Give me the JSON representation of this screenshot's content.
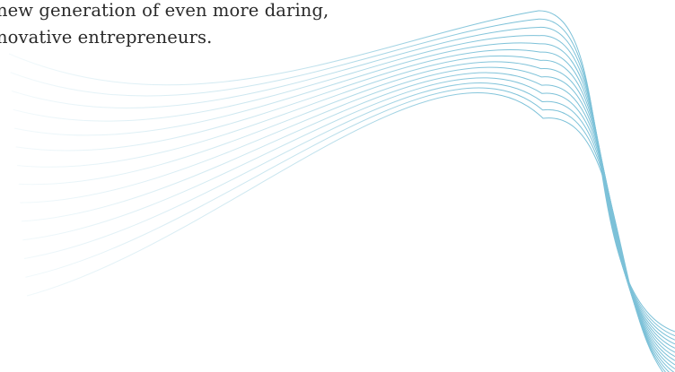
{
  "hero": {
    "line1": "new generation of even more daring,",
    "line2": "novative entrepreneurs."
  },
  "decoration": {
    "icon": "wave-lines-graphic",
    "stroke_color": "#7cc1d8"
  }
}
